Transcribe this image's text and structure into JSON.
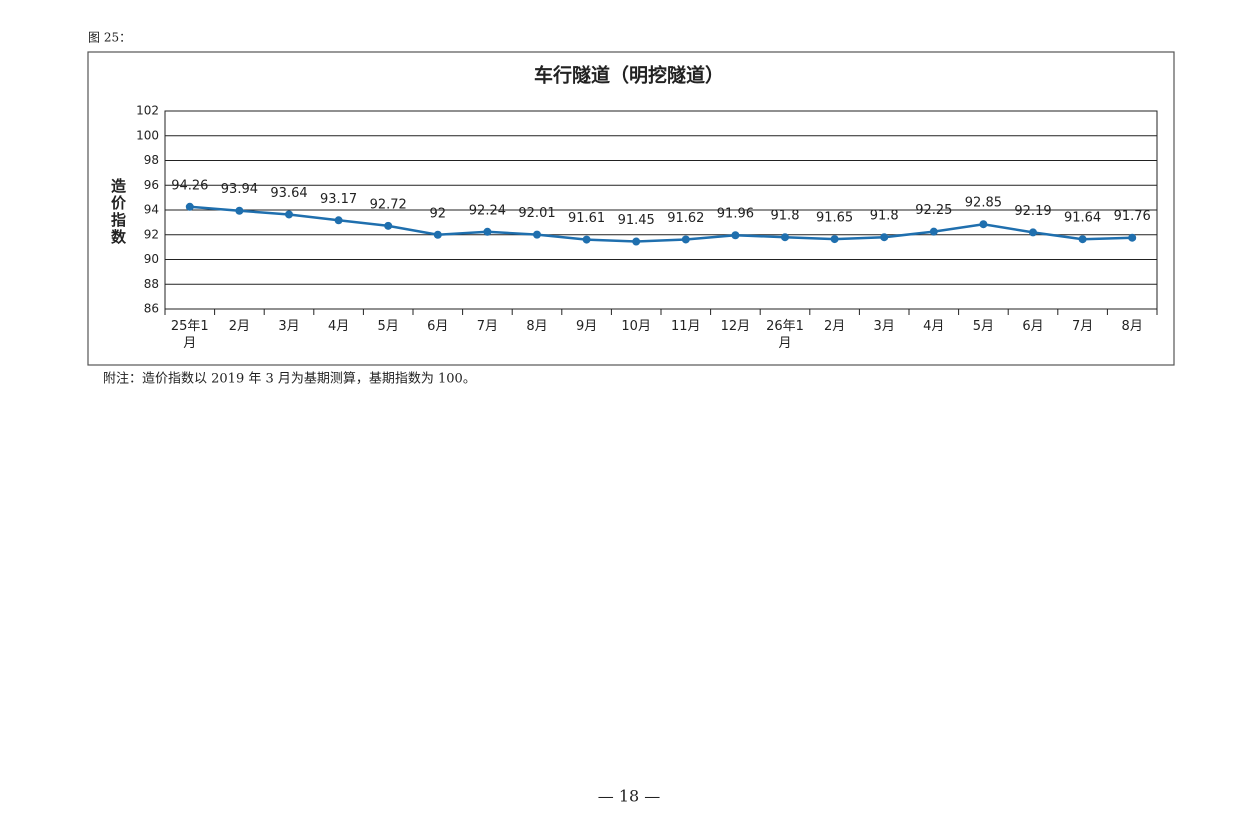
{
  "caption": "图 25：",
  "chart_data": {
    "type": "line",
    "title": "车行隧道（明挖隧道）",
    "y_label": "造价指数",
    "categories": [
      "25年1月",
      "2月",
      "3月",
      "4月",
      "5月",
      "6月",
      "7月",
      "8月",
      "9月",
      "10月",
      "11月",
      "12月",
      "26年1月",
      "2月",
      "3月",
      "4月",
      "5月",
      "6月",
      "7月",
      "8月"
    ],
    "values": [
      94.26,
      93.94,
      93.64,
      93.17,
      92.72,
      92,
      92.24,
      92.01,
      91.61,
      91.45,
      91.62,
      91.96,
      91.8,
      91.65,
      91.8,
      92.25,
      92.85,
      92.19,
      91.64,
      91.76
    ],
    "color": "#1f6fae",
    "ylim": [
      86,
      102
    ],
    "yticks": [
      86,
      88,
      90,
      92,
      94,
      96,
      98,
      100,
      102
    ],
    "grid": true
  },
  "note": "附注：造价指数以 2019 年 3 月为基期测算，基期指数为 100。",
  "page_number": "— 18 —"
}
